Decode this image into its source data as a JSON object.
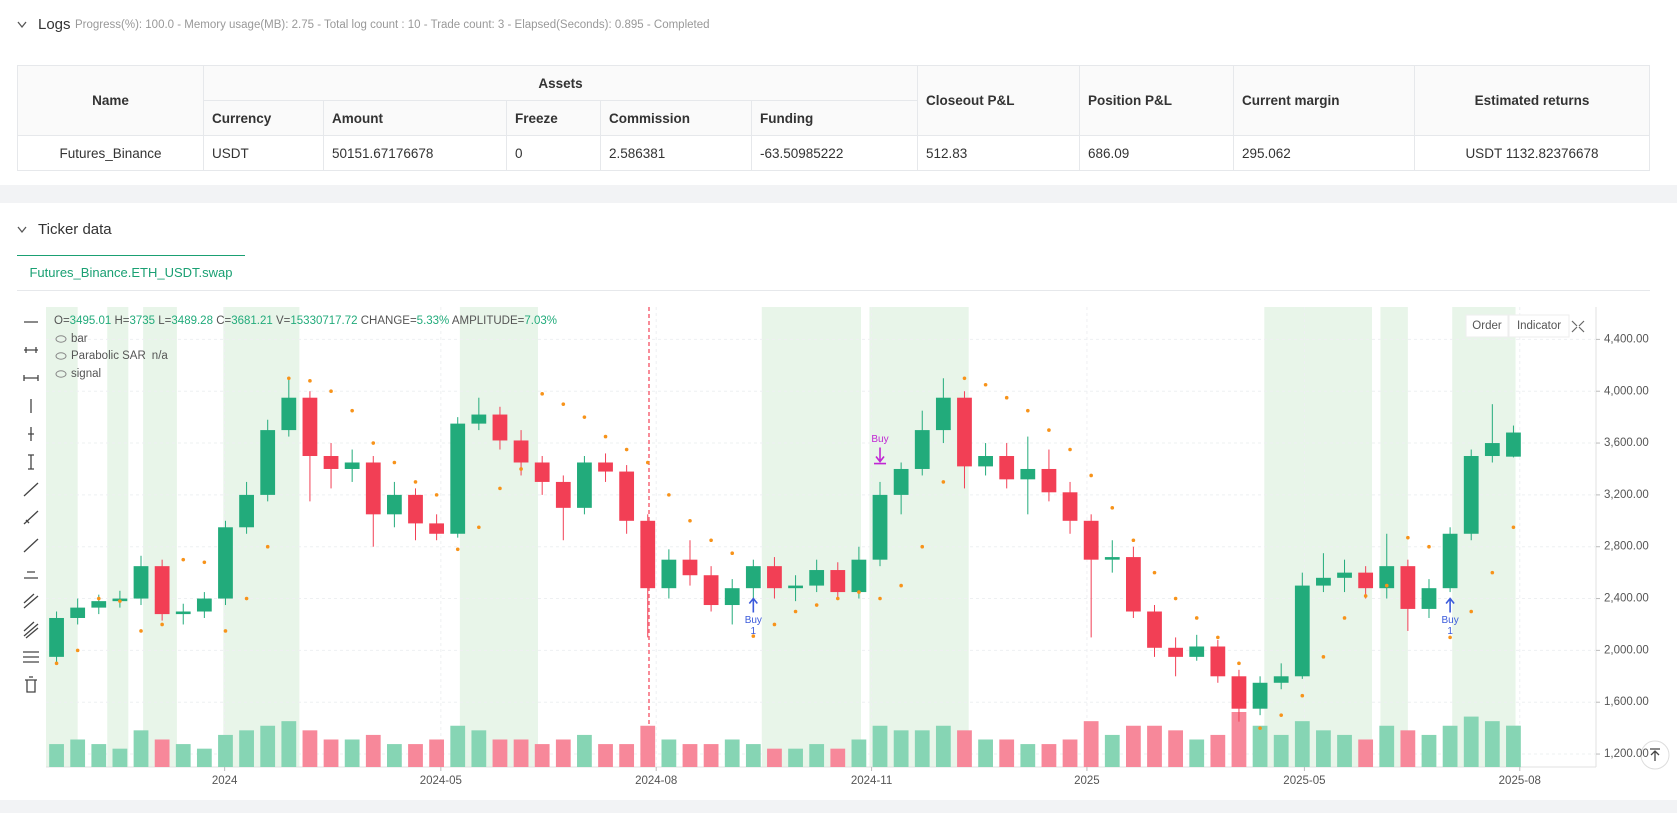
{
  "logs": {
    "title": "Logs",
    "status": "Progress(%): 100.0 - Memory usage(MB): 2.75 - Total log count : 10 - Trade count: 3 - Elapsed(Seconds): 0.895 - Completed"
  },
  "table": {
    "headers": [
      "Name",
      "Assets",
      "Closeout P&L",
      "Position P&L",
      "Current margin",
      "Estimated returns"
    ],
    "subheaders": [
      "Currency",
      "Amount",
      "Freeze",
      "Commission",
      "Funding"
    ],
    "rows": [
      [
        "Futures_Binance",
        "USDT",
        "50151.67176678",
        "0",
        "2.586381",
        "-63.50985222",
        "512.83",
        "686.09",
        "295.062",
        "USDT 1132.82376678"
      ]
    ]
  },
  "ticker": {
    "title": "Ticker data",
    "tab": "Futures_Binance.ETH_USDT.swap",
    "buttons": [
      "Order",
      "Indicator"
    ]
  },
  "chart_data": {
    "type": "candlestick",
    "info": {
      "open_label": "O=",
      "high_label": "H=",
      "low_label": "L=",
      "close_label": "C=",
      "volume_label": "V=",
      "change_label": "CHANGE=",
      "change": "5.33%",
      "amplitude_label": "AMPLITUDE=",
      "amplitude": "7.03%"
    },
    "legend": [
      {
        "name": "bar"
      },
      {
        "name": "Parabolic SAR",
        "value": "n/a"
      },
      {
        "name": "signal"
      }
    ],
    "open": [
      1950,
      2250,
      2330,
      2380,
      2400,
      2650,
      2280,
      2300,
      2400,
      2950,
      3200,
      3700,
      3950,
      3500,
      3400,
      3450,
      3050,
      3200,
      2980,
      2900,
      3750,
      3820,
      3620,
      3450,
      3300,
      3100,
      3450,
      3380,
      3000,
      2480,
      2700,
      2580,
      2350,
      2480,
      2650,
      2480,
      2500,
      2620,
      2450,
      2700,
      3200,
      3400,
      3700,
      3950,
      3420,
      3500,
      3320,
      3400,
      3220,
      3000,
      2700,
      2720,
      2300,
      2020,
      1950,
      2030,
      1800,
      1550,
      1750,
      1800,
      2500,
      2560,
      2600,
      2480,
      2650,
      2320,
      2480,
      2900,
      3500,
      3495.01
    ],
    "high": [
      2300,
      2400,
      2430,
      2460,
      2730,
      2700,
      2360,
      2450,
      3000,
      3300,
      3780,
      4100,
      4000,
      3600,
      3550,
      3500,
      3300,
      3250,
      3050,
      3800,
      3950,
      3880,
      3700,
      3500,
      3350,
      3500,
      3520,
      3430,
      3050,
      2780,
      2850,
      2650,
      2550,
      2700,
      2720,
      2580,
      2700,
      2680,
      2800,
      3300,
      3450,
      3850,
      4100,
      4000,
      3600,
      3600,
      3650,
      3550,
      3300,
      3050,
      2850,
      2800,
      2350,
      2100,
      2120,
      2080,
      1850,
      1800,
      1900,
      2600,
      2750,
      2700,
      2650,
      2900,
      2700,
      2550,
      2950,
      3550,
      3900,
      3735
    ],
    "low": [
      1900,
      2200,
      2280,
      2330,
      2350,
      2230,
      2200,
      2250,
      2350,
      2900,
      3150,
      3650,
      3150,
      3250,
      3300,
      2800,
      2950,
      2850,
      2850,
      2870,
      3700,
      3550,
      3350,
      3200,
      2850,
      3050,
      3300,
      2900,
      2100,
      2400,
      2500,
      2300,
      2200,
      2400,
      2400,
      2380,
      2450,
      2400,
      2400,
      2650,
      3050,
      3350,
      3600,
      3250,
      3350,
      3250,
      3050,
      3150,
      2900,
      2100,
      2600,
      2250,
      1950,
      1800,
      1920,
      1750,
      1450,
      1500,
      1700,
      1780,
      2450,
      2450,
      2400,
      2400,
      2150,
      2250,
      2450,
      2850,
      3450,
      3489.28
    ],
    "close": [
      2250,
      2330,
      2380,
      2400,
      2650,
      2280,
      2300,
      2400,
      2950,
      3200,
      3700,
      3950,
      3500,
      3400,
      3450,
      3050,
      3200,
      2980,
      2900,
      3750,
      3820,
      3620,
      3450,
      3300,
      3100,
      3450,
      3380,
      3000,
      2480,
      2700,
      2580,
      2350,
      2480,
      2650,
      2480,
      2500,
      2620,
      2450,
      2700,
      3200,
      3400,
      3700,
      3950,
      3420,
      3500,
      3320,
      3400,
      3220,
      3000,
      2700,
      2720,
      2300,
      2020,
      1950,
      2030,
      1800,
      1550,
      1750,
      1800,
      2500,
      2560,
      2600,
      2480,
      2650,
      2320,
      2480,
      2900,
      3500,
      3600,
      3681.21
    ],
    "volume": [
      8500000,
      10200000,
      8500000,
      6800000,
      13600000,
      10200000,
      8500000,
      6800000,
      11900000,
      13600000,
      15300000,
      17000000,
      13600000,
      10200000,
      10200000,
      11900000,
      8500000,
      8500000,
      10200000,
      15300000,
      13600000,
      10200000,
      10200000,
      8500000,
      10200000,
      11900000,
      8500000,
      8500000,
      15300000,
      10200000,
      8500000,
      8500000,
      10200000,
      8500000,
      6800000,
      6800000,
      8500000,
      6800000,
      10200000,
      15300000,
      13600000,
      13600000,
      15300000,
      13600000,
      10200000,
      10200000,
      8500000,
      8500000,
      10200000,
      17000000,
      11900000,
      15300000,
      15300000,
      13600000,
      10200000,
      11900000,
      20400000,
      15300000,
      11900000,
      17000000,
      13600000,
      11900000,
      10200000,
      15300000,
      13600000,
      11900000,
      15300000,
      18700000,
      17000000,
      15330717.72
    ],
    "sar": [
      1900,
      2000,
      2400,
      2380,
      2150,
      2200,
      2700,
      2680,
      2150,
      2400,
      2800,
      4100,
      4080,
      4000,
      3850,
      3600,
      3450,
      3300,
      3200,
      2780,
      2950,
      3250,
      3400,
      3980,
      3900,
      3800,
      3650,
      3550,
      3450,
      3200,
      3000,
      2850,
      2750,
      2110,
      2200,
      2300,
      2350,
      2400,
      2450,
      2400,
      2500,
      2800,
      3300,
      4100,
      4050,
      3950,
      3850,
      3700,
      3550,
      3350,
      3100,
      2850,
      2600,
      2400,
      2250,
      2100,
      1900,
      1400,
      1500,
      1650,
      1950,
      2250,
      2420,
      2500,
      2870,
      2800,
      2100,
      2300,
      2600,
      2950
    ],
    "signal_ranges": [
      [
        0,
        1.5
      ],
      [
        2.9,
        3.9
      ],
      [
        4.6,
        6.2
      ],
      [
        8.4,
        12.0
      ],
      [
        19.6,
        23.3
      ],
      [
        33.9,
        38.6
      ],
      [
        39.0,
        43.7
      ],
      [
        57.7,
        62.8
      ],
      [
        63.2,
        64.5
      ],
      [
        66.6,
        69.6
      ]
    ],
    "annotations": [
      {
        "text": "Buy",
        "count": "1",
        "index": 33.5,
        "price": 2400,
        "color": "#3b5bdb"
      },
      {
        "text": "Buy",
        "index": 39.5,
        "price": 3550,
        "color": "#c026d3"
      },
      {
        "text": "Buy",
        "count": "1",
        "index": 66.5,
        "price": 2400,
        "color": "#3b5bdb"
      }
    ],
    "xlim": [
      0,
      70
    ],
    "xticks": [
      {
        "value": 8.46,
        "label": "2024"
      },
      {
        "value": 18.7,
        "label": "2024-05"
      },
      {
        "value": 28.9,
        "label": "2024-08"
      },
      {
        "value": 39.1,
        "label": "2024-11"
      },
      {
        "value": 49.3,
        "label": "2025"
      },
      {
        "value": 59.6,
        "label": "2025-05"
      },
      {
        "value": 69.8,
        "label": "2025-08"
      }
    ],
    "ylim": [
      1100,
      4650
    ],
    "yticks": [
      {
        "value": 1200,
        "label": "1,200.00"
      },
      {
        "value": 1600,
        "label": "1,600.00"
      },
      {
        "value": 2000,
        "label": "2,000.00"
      },
      {
        "value": 2400,
        "label": "2,400.00"
      },
      {
        "value": 2800,
        "label": "2,800.00"
      },
      {
        "value": 3200,
        "label": "3,200.00"
      },
      {
        "value": 3600,
        "label": "3,600.00"
      },
      {
        "value": 4000,
        "label": "4,000.00"
      },
      {
        "value": 4400,
        "label": "4,400.00"
      }
    ],
    "grid": true,
    "up_color": "#22ab7b",
    "down_color": "#f23f55",
    "volume_up_color": "#86d5b4",
    "volume_down_color": "#f7889a",
    "sar_color": "#f7931a",
    "signal_color": "#e8f5e9"
  }
}
